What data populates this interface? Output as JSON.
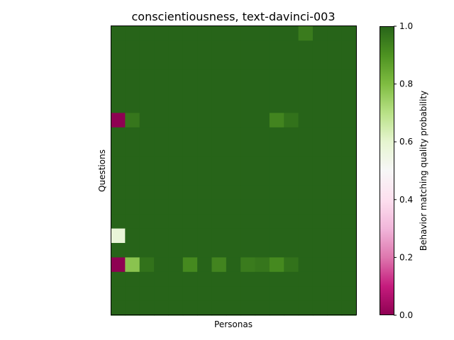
{
  "chart_data": {
    "type": "heatmap",
    "title": "conscientiousness, text-davinci-003",
    "xlabel": "Personas",
    "ylabel": "Questions",
    "n_rows": 20,
    "n_cols": 17,
    "default_value": 1.0,
    "cells": [
      {
        "row": 0,
        "col": 13,
        "value": 0.95
      },
      {
        "row": 6,
        "col": 0,
        "value": 0.0
      },
      {
        "row": 6,
        "col": 1,
        "value": 0.96
      },
      {
        "row": 6,
        "col": 11,
        "value": 0.93
      },
      {
        "row": 6,
        "col": 12,
        "value": 0.97
      },
      {
        "row": 14,
        "col": 0,
        "value": 0.58
      },
      {
        "row": 16,
        "col": 0,
        "value": 0.0
      },
      {
        "row": 16,
        "col": 1,
        "value": 0.78
      },
      {
        "row": 16,
        "col": 2,
        "value": 0.97
      },
      {
        "row": 16,
        "col": 5,
        "value": 0.92
      },
      {
        "row": 16,
        "col": 7,
        "value": 0.93
      },
      {
        "row": 16,
        "col": 9,
        "value": 0.95
      },
      {
        "row": 16,
        "col": 10,
        "value": 0.96
      },
      {
        "row": 16,
        "col": 11,
        "value": 0.92
      },
      {
        "row": 16,
        "col": 12,
        "value": 0.97
      }
    ],
    "colorbar": {
      "label": "Behavior matching quality probability",
      "range": [
        0,
        1
      ],
      "ticks": [
        "0.0",
        "0.2",
        "0.4",
        "0.6",
        "0.8",
        "1.0"
      ],
      "colormap": "PiYG"
    }
  }
}
